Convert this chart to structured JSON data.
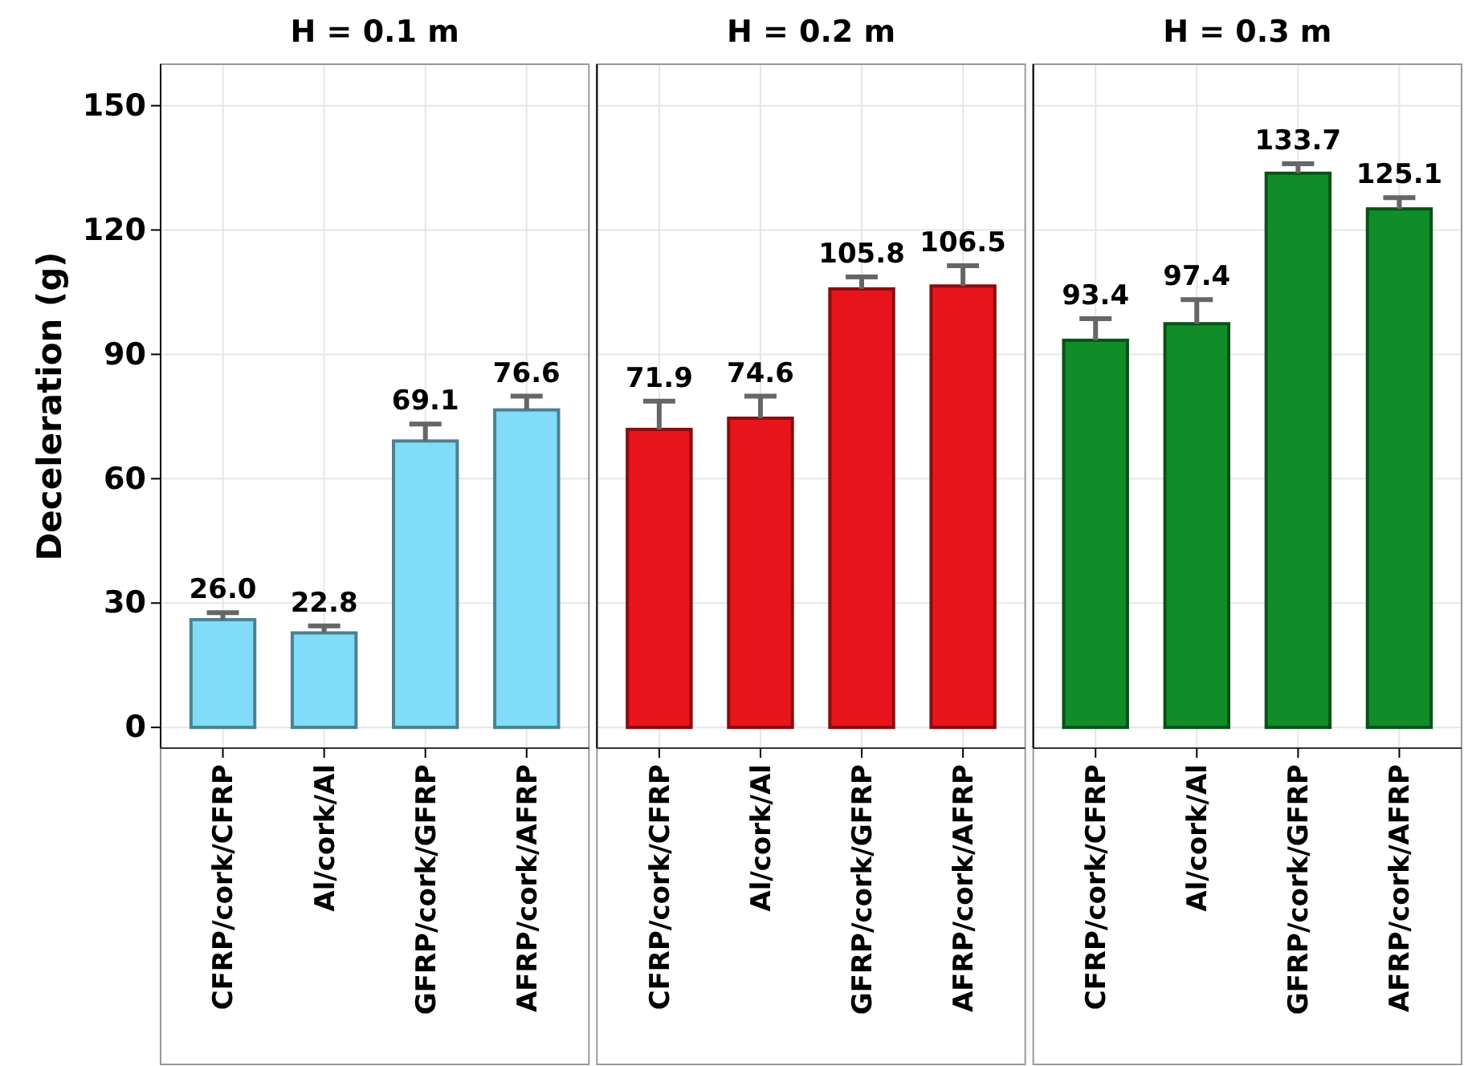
{
  "chart_data": [
    {
      "type": "bar",
      "title": "H = 0.1 m",
      "ylabel": "Deceleration (g)",
      "categories": [
        "CFRP/cork/CFRP",
        "Al/cork/Al",
        "GFRP/cork/GFRP",
        "AFRP/cork/AFRP"
      ],
      "series": [
        {
          "color": "#80dcf8",
          "values": [
            26.0,
            22.8,
            69.1,
            76.6
          ],
          "value_labels": [
            "26.0",
            "22.8",
            "69.1",
            "76.6"
          ],
          "errors": [
            [
              26.0,
              27.7
            ],
            [
              22.8,
              24.5
            ],
            [
              69.1,
              73.2
            ],
            [
              76.6,
              79.9
            ]
          ]
        }
      ],
      "ylim": [
        -5,
        160
      ],
      "yticks": [
        0,
        30,
        60,
        90,
        120,
        150
      ],
      "grid": true
    },
    {
      "type": "bar",
      "title": "H = 0.2 m",
      "categories": [
        "CFRP/cork/CFRP",
        "Al/cork/Al",
        "GFRP/cork/GFRP",
        "AFRP/cork/AFRP"
      ],
      "series": [
        {
          "color": "#e8141c",
          "values": [
            71.9,
            74.6,
            105.8,
            106.5
          ],
          "value_labels": [
            "71.9",
            "74.6",
            "105.8",
            "106.5"
          ],
          "errors": [
            [
              71.9,
              78.7
            ],
            [
              74.6,
              79.9
            ],
            [
              105.8,
              108.7
            ],
            [
              106.5,
              111.4
            ]
          ]
        }
      ],
      "ylim": [
        -5,
        160
      ],
      "yticks": [
        0,
        30,
        60,
        90,
        120,
        150
      ],
      "tick_labels": "x",
      "grid": true
    },
    {
      "type": "bar",
      "title": "H = 0.3 m",
      "categories": [
        "CFRP/cork/CFRP",
        "Al/cork/Al",
        "GFRP/cork/GFRP",
        "AFRP/cork/AFRP"
      ],
      "series": [
        {
          "color": "#108c28",
          "values": [
            93.4,
            97.4,
            133.7,
            125.1
          ],
          "value_labels": [
            "93.4",
            "97.4",
            "133.7",
            "125.1"
          ],
          "errors": [
            [
              93.4,
              98.6
            ],
            [
              97.4,
              103.2
            ],
            [
              133.7,
              136.0
            ],
            [
              125.1,
              127.8
            ]
          ]
        }
      ],
      "ylim": [
        -5,
        160
      ],
      "yticks": [
        0,
        30,
        60,
        90,
        120,
        150
      ],
      "tick_labels": "x",
      "grid": true
    }
  ]
}
